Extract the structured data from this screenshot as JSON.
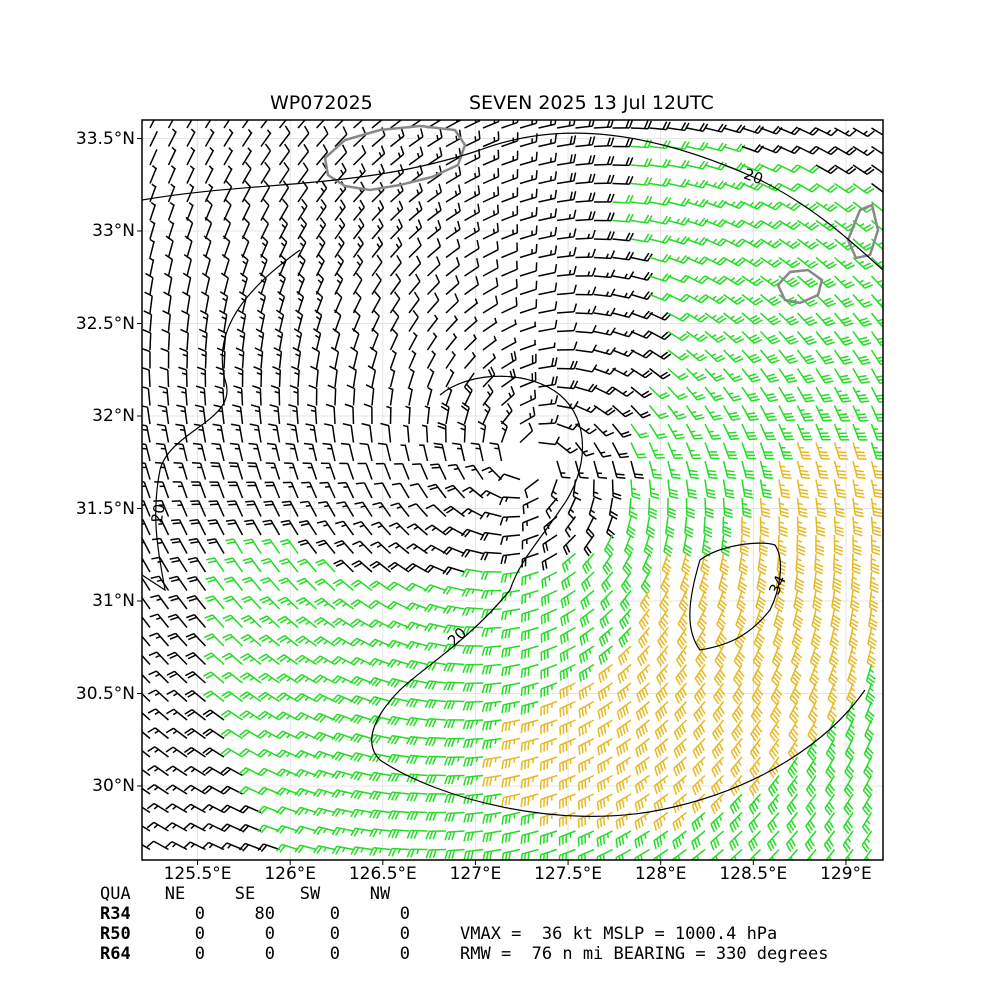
{
  "title": {
    "storm_id": "WP072025",
    "storm_info": "SEVEN 2025 13 Jul 12UTC"
  },
  "map": {
    "lon_range": [
      125.2,
      129.2
    ],
    "lat_range": [
      29.6,
      33.6
    ],
    "lat_ticks": [
      {
        "value": 33.5,
        "label": "33.5°N"
      },
      {
        "value": 33.0,
        "label": "33°N"
      },
      {
        "value": 32.5,
        "label": "32.5°N"
      },
      {
        "value": 32.0,
        "label": "32°N"
      },
      {
        "value": 31.5,
        "label": "31.5°N"
      },
      {
        "value": 31.0,
        "label": "31°N"
      },
      {
        "value": 30.5,
        "label": "30.5°N"
      },
      {
        "value": 30.0,
        "label": "30°N"
      }
    ],
    "lon_ticks": [
      {
        "value": 125.5,
        "label": "125.5°E"
      },
      {
        "value": 126.0,
        "label": "126°E"
      },
      {
        "value": 126.5,
        "label": "126.5°E"
      },
      {
        "value": 127.0,
        "label": "127°E"
      },
      {
        "value": 127.5,
        "label": "127.5°E"
      },
      {
        "value": 128.0,
        "label": "128°E"
      },
      {
        "value": 128.5,
        "label": "128.5°E"
      },
      {
        "value": 129.0,
        "label": "129°E"
      }
    ],
    "gridlines": true,
    "center": {
      "lon": 127.3,
      "lat": 31.75
    },
    "colors": {
      "weak": "#000000",
      "gale": "#22dd22",
      "strong": "#e8b820",
      "coast": "#888888"
    },
    "contour_labels": [
      "20",
      "20",
      "20",
      "34"
    ]
  },
  "quadrants": {
    "headers": [
      "QUA",
      "NE",
      "SE",
      "SW",
      "NW"
    ],
    "rows": [
      {
        "label": "R34",
        "values": [
          "0",
          "80",
          "0",
          "0"
        ]
      },
      {
        "label": "R50",
        "values": [
          "0",
          "0",
          "0",
          "0"
        ]
      },
      {
        "label": "R64",
        "values": [
          "0",
          "0",
          "0",
          "0"
        ]
      }
    ]
  },
  "stats": {
    "line1": "VMAX =  36 kt MSLP = 1000.4 hPa",
    "line2": "RMW =  76 n mi BEARING = 330 degrees"
  }
}
